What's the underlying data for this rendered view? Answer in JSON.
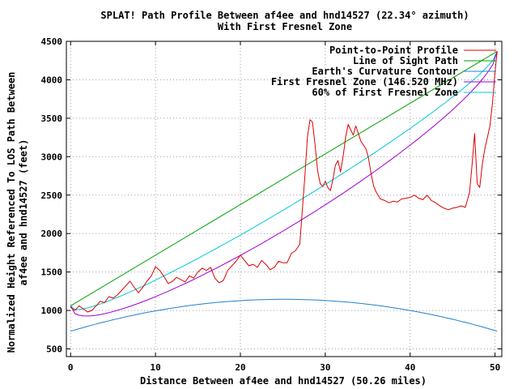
{
  "chart_data": {
    "type": "line",
    "title": "SPLAT! Path Profile Between af4ee and hnd14527 (22.34° azimuth)",
    "subtitle": "With First Fresnel Zone",
    "xlabel": "Distance Between af4ee and hnd14527 (50.26 miles)",
    "ylabel_line1": "Normalized Height Referenced To LOS Path Between",
    "ylabel_line2": "af4ee and hnd14527 (feet)",
    "xlim": [
      -0.5,
      50.8
    ],
    "ylim": [
      400,
      4500
    ],
    "xticks": [
      0,
      10,
      20,
      30,
      40,
      50
    ],
    "yticks": [
      500,
      1000,
      1500,
      2000,
      2500,
      3000,
      3500,
      4000,
      4500
    ],
    "grid": true,
    "legend_position": "top-right",
    "series": [
      {
        "name": "Point-to-Point Profile",
        "color": "#dd0000",
        "x": [
          0,
          0.5,
          1,
          1.5,
          2,
          2.5,
          3,
          3.5,
          4,
          4.5,
          5,
          5.5,
          6,
          6.5,
          7,
          7.5,
          8,
          8.5,
          9,
          9.5,
          10,
          10.5,
          11,
          11.5,
          12,
          12.5,
          13,
          13.5,
          14,
          14.5,
          15,
          15.5,
          16,
          16.5,
          17,
          17.5,
          18,
          18.5,
          19,
          19.5,
          20,
          20.5,
          21,
          21.5,
          22,
          22.5,
          23,
          23.5,
          24,
          24.5,
          25,
          25.5,
          26,
          26.5,
          27,
          27.3,
          27.6,
          27.9,
          28.2,
          28.5,
          28.8,
          29.1,
          29.4,
          29.7,
          30,
          30.3,
          30.6,
          30.9,
          31.2,
          31.5,
          31.8,
          32.1,
          32.4,
          32.7,
          33,
          33.3,
          33.6,
          33.9,
          34.2,
          34.5,
          34.8,
          35.1,
          35.4,
          35.7,
          36,
          36.5,
          37,
          37.5,
          38,
          38.5,
          39,
          39.5,
          40,
          40.5,
          41,
          41.5,
          42,
          42.5,
          43,
          43.5,
          44,
          44.5,
          45,
          45.5,
          46,
          46.5,
          47,
          47.3,
          47.6,
          47.9,
          48.2,
          48.5,
          48.8,
          49.1,
          49.4,
          49.7,
          50,
          50.26
        ],
        "y": [
          1040,
          1000,
          1060,
          1020,
          980,
          1000,
          1060,
          1120,
          1100,
          1180,
          1160,
          1200,
          1260,
          1320,
          1380,
          1300,
          1230,
          1300,
          1380,
          1450,
          1570,
          1520,
          1440,
          1350,
          1380,
          1430,
          1400,
          1370,
          1450,
          1420,
          1500,
          1550,
          1520,
          1560,
          1420,
          1360,
          1390,
          1520,
          1580,
          1640,
          1720,
          1650,
          1580,
          1600,
          1560,
          1650,
          1600,
          1530,
          1560,
          1640,
          1620,
          1620,
          1740,
          1780,
          1860,
          2300,
          2750,
          3250,
          3480,
          3450,
          3150,
          2820,
          2650,
          2610,
          2680,
          2600,
          2560,
          2700,
          2890,
          2950,
          2800,
          3000,
          3250,
          3420,
          3350,
          3280,
          3400,
          3300,
          3200,
          3150,
          3100,
          2980,
          2780,
          2620,
          2540,
          2450,
          2430,
          2400,
          2420,
          2410,
          2450,
          2460,
          2470,
          2500,
          2460,
          2440,
          2500,
          2430,
          2400,
          2360,
          2330,
          2310,
          2330,
          2340,
          2360,
          2340,
          2530,
          2900,
          3300,
          2650,
          2600,
          2900,
          3100,
          3250,
          3400,
          3700,
          4100,
          4370
        ]
      },
      {
        "name": "Line of Sight Path",
        "color": "#00a000",
        "x": [
          0,
          50.26
        ],
        "y": [
          1060,
          4370
        ]
      },
      {
        "name": "Earth's Curvature Contour",
        "color": "#2080d0",
        "kind": "earth-curvature",
        "endpoint_height": 730,
        "bulge_height": 1145
      },
      {
        "name": "First Fresnel Zone (146.520 MHz)",
        "color": "#a000d0",
        "kind": "fresnel",
        "fresnel_depth": 675
      },
      {
        "name": "60% of First Fresnel Zone",
        "color": "#00c8d8",
        "kind": "fresnel",
        "fresnel_depth": 405
      }
    ]
  }
}
